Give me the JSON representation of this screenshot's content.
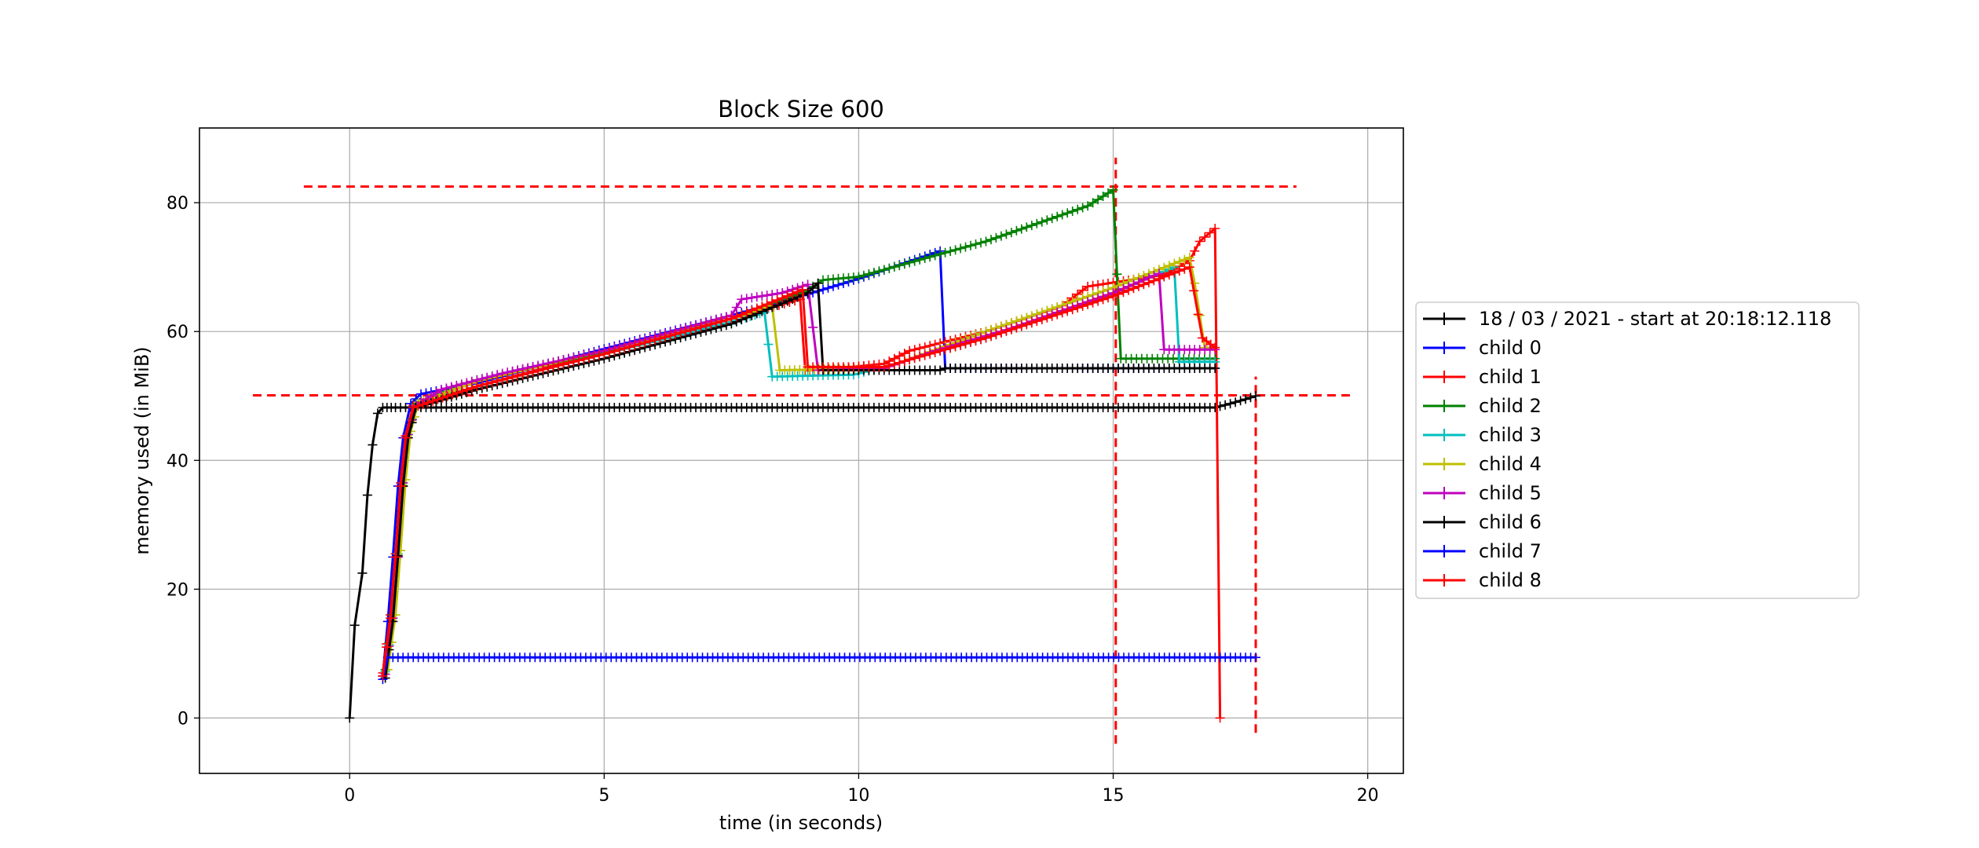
{
  "chart_data": {
    "type": "line",
    "title": "Block Size 600",
    "xlabel": "time (in seconds)",
    "ylabel": "memory used (in MiB)",
    "xlim": [
      -2.95,
      20.7
    ],
    "ylim": [
      -8.6,
      91.6
    ],
    "xticks": [
      0,
      5,
      10,
      15,
      20
    ],
    "yticks": [
      0,
      20,
      40,
      60,
      80
    ],
    "xtick_labels": [
      "0",
      "5",
      "10",
      "15",
      "20"
    ],
    "ytick_labels": [
      "0",
      "20",
      "40",
      "60",
      "80"
    ],
    "grid": true,
    "legend_position": "right, outside plot",
    "series": [
      {
        "name": "18 / 03 / 2021 - start at 20:18:12.118",
        "color": "#000000",
        "marker": "+",
        "points": [
          [
            0,
            0
          ],
          [
            0.1,
            14.4
          ],
          [
            0.25,
            22.5
          ],
          [
            0.35,
            34.6
          ],
          [
            0.45,
            42.4
          ],
          [
            0.55,
            47.3
          ],
          [
            0.65,
            48.2
          ],
          [
            0.9,
            48.2
          ],
          [
            17,
            48.2
          ],
          [
            17.3,
            48.8
          ],
          [
            17.6,
            49.5
          ],
          [
            17.8,
            50
          ]
        ]
      },
      {
        "name": "child 0",
        "color": "#0000ff",
        "marker": "+",
        "points": [
          [
            0.65,
            6.5
          ],
          [
            0.75,
            15
          ],
          [
            0.85,
            25
          ],
          [
            0.95,
            36
          ],
          [
            1.05,
            43.5
          ],
          [
            1.2,
            48.8
          ],
          [
            1.4,
            50.3
          ],
          [
            2.5,
            52
          ],
          [
            5,
            57.3
          ],
          [
            7.5,
            62.5
          ],
          [
            9,
            65.8
          ],
          [
            10,
            68.2
          ],
          [
            11.6,
            72.5
          ],
          [
            11.7,
            54.3
          ],
          [
            17,
            54.3
          ]
        ]
      },
      {
        "name": "child 1",
        "color": "#ff0000",
        "marker": "+",
        "points": [
          [
            0.65,
            7
          ],
          [
            0.8,
            16
          ],
          [
            0.9,
            25.5
          ],
          [
            1,
            36.5
          ],
          [
            1.1,
            43.8
          ],
          [
            1.25,
            48.5
          ],
          [
            2.5,
            51.5
          ],
          [
            5,
            56.8
          ],
          [
            7.5,
            62
          ],
          [
            8.85,
            65
          ],
          [
            8.95,
            54
          ],
          [
            9.5,
            54.2
          ],
          [
            10.5,
            55
          ],
          [
            11,
            57
          ],
          [
            12.5,
            60
          ],
          [
            14,
            64
          ],
          [
            14.5,
            67
          ],
          [
            16,
            68.8
          ],
          [
            16.5,
            71
          ],
          [
            16.7,
            74
          ],
          [
            17,
            76
          ],
          [
            17.1,
            0
          ]
        ]
      },
      {
        "name": "child 2",
        "color": "#008000",
        "marker": "+",
        "points": [
          [
            0.7,
            7.5
          ],
          [
            0.85,
            16
          ],
          [
            0.95,
            25
          ],
          [
            1.05,
            36
          ],
          [
            1.15,
            44
          ],
          [
            1.3,
            48.8
          ],
          [
            2.5,
            52.5
          ],
          [
            5,
            56.8
          ],
          [
            7.5,
            62
          ],
          [
            9,
            66.5
          ],
          [
            9.3,
            68
          ],
          [
            10,
            68.5
          ],
          [
            12.5,
            74
          ],
          [
            14.5,
            79.5
          ],
          [
            15,
            82
          ],
          [
            15.15,
            55.8
          ],
          [
            17,
            55.8
          ]
        ]
      },
      {
        "name": "child 3",
        "color": "#00bfbf",
        "marker": "+",
        "points": [
          [
            0.7,
            7.2
          ],
          [
            0.85,
            15.5
          ],
          [
            0.95,
            25.5
          ],
          [
            1.05,
            36.5
          ],
          [
            1.15,
            44
          ],
          [
            1.3,
            48.5
          ],
          [
            2.5,
            51.5
          ],
          [
            5,
            56.5
          ],
          [
            7.5,
            61.5
          ],
          [
            8.15,
            63
          ],
          [
            8.3,
            53
          ],
          [
            9.9,
            53.3
          ],
          [
            10.5,
            54.5
          ],
          [
            12.5,
            59
          ],
          [
            15,
            66
          ],
          [
            16.2,
            70
          ],
          [
            16.3,
            55.3
          ],
          [
            17,
            55.3
          ]
        ]
      },
      {
        "name": "child 4",
        "color": "#bfbf00",
        "marker": "+",
        "points": [
          [
            0.75,
            7.5
          ],
          [
            0.9,
            16
          ],
          [
            1,
            26
          ],
          [
            1.1,
            37
          ],
          [
            1.2,
            44.5
          ],
          [
            1.35,
            49
          ],
          [
            2.5,
            52.3
          ],
          [
            5,
            57
          ],
          [
            7.5,
            62
          ],
          [
            8.3,
            64
          ],
          [
            8.45,
            54
          ],
          [
            10.5,
            54.3
          ],
          [
            12.5,
            60
          ],
          [
            15,
            66.8
          ],
          [
            16.5,
            71.5
          ],
          [
            16.6,
            67.5
          ],
          [
            16.8,
            57.5
          ],
          [
            17,
            57.5
          ]
        ]
      },
      {
        "name": "child 5",
        "color": "#bf00bf",
        "marker": "+",
        "points": [
          [
            0.7,
            6.8
          ],
          [
            0.85,
            15.5
          ],
          [
            0.95,
            25
          ],
          [
            1.05,
            36.5
          ],
          [
            1.15,
            44
          ],
          [
            1.3,
            48.5
          ],
          [
            1.8,
            51
          ],
          [
            3,
            53.5
          ],
          [
            5,
            57
          ],
          [
            7.5,
            62.5
          ],
          [
            7.7,
            65
          ],
          [
            8.5,
            66
          ],
          [
            9,
            67.3
          ],
          [
            9.2,
            54
          ],
          [
            10.5,
            54.3
          ],
          [
            11.5,
            57
          ],
          [
            13,
            60.5
          ],
          [
            15,
            66
          ],
          [
            15.9,
            69
          ],
          [
            16,
            57.2
          ],
          [
            17,
            57.2
          ]
        ]
      },
      {
        "name": "child 6",
        "color": "#000000",
        "marker": "+",
        "points": [
          [
            0.7,
            6.2
          ],
          [
            0.85,
            15
          ],
          [
            0.95,
            25.2
          ],
          [
            1.05,
            36
          ],
          [
            1.15,
            43.5
          ],
          [
            1.3,
            48.2
          ],
          [
            2.5,
            51
          ],
          [
            5,
            55.8
          ],
          [
            7.5,
            61.2
          ],
          [
            9,
            66
          ],
          [
            9.2,
            67.5
          ],
          [
            9.3,
            54
          ],
          [
            11.6,
            54
          ],
          [
            11.7,
            54.3
          ],
          [
            17,
            54.3
          ]
        ]
      },
      {
        "name": "child 7",
        "color": "#0000ff",
        "marker": "+",
        "points": [
          [
            0.65,
            6
          ],
          [
            0.75,
            9.4
          ],
          [
            17.8,
            9.4
          ]
        ]
      },
      {
        "name": "child 8",
        "color": "#ff0000",
        "marker": "+",
        "points": [
          [
            0.65,
            6.5
          ],
          [
            0.8,
            15.5
          ],
          [
            0.9,
            25
          ],
          [
            1,
            36
          ],
          [
            1.1,
            43.5
          ],
          [
            1.25,
            48.2
          ],
          [
            2.5,
            51.5
          ],
          [
            5,
            56.5
          ],
          [
            7.5,
            62
          ],
          [
            8.9,
            66.5
          ],
          [
            9,
            54.5
          ],
          [
            10.5,
            54.5
          ],
          [
            12.5,
            59
          ],
          [
            15,
            65.5
          ],
          [
            16.5,
            70
          ],
          [
            16.75,
            59
          ],
          [
            17,
            57.5
          ]
        ]
      }
    ],
    "reference_lines": [
      {
        "orientation": "horizontal",
        "y": 82.5,
        "x_from": -0.9,
        "x_to": 18.6,
        "color": "#ff0000",
        "style": "dashed"
      },
      {
        "orientation": "horizontal",
        "y": 50.1,
        "x_from": -1.9,
        "x_to": 19.65,
        "color": "#ff0000",
        "style": "dashed"
      },
      {
        "orientation": "vertical",
        "x": 15.05,
        "y_from": -4,
        "y_to": 87,
        "color": "#ff0000",
        "style": "dashed"
      },
      {
        "orientation": "vertical",
        "x": 17.8,
        "y_from": -2.3,
        "y_to": 53,
        "color": "#ff0000",
        "style": "dashed"
      }
    ]
  }
}
